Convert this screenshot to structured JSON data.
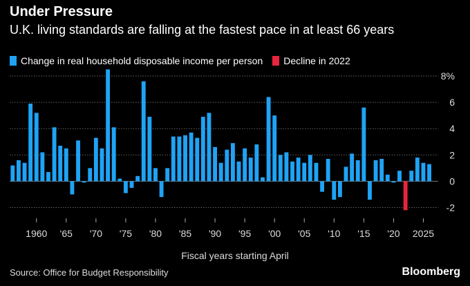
{
  "header": {
    "title": "Under Pressure",
    "subtitle": "U.K. living standards are falling at the fastest pace in at least 66 years"
  },
  "legend": [
    {
      "label": "Change in real household disposable income per person",
      "color": "#1fa3f5"
    },
    {
      "label": "Decline in 2022",
      "color": "#e8253d"
    }
  ],
  "footer": {
    "source": "Source: Office for Budget Responsibility",
    "brand": "Bloomberg"
  },
  "chart_data": {
    "type": "bar",
    "title": "Under Pressure",
    "subtitle": "U.K. living standards are falling at the fastest pace in at least 66 years",
    "xlabel": "Fiscal years starting April",
    "ylabel": "",
    "ylim": [
      -2.5,
      8
    ],
    "yticks": [
      -2,
      0,
      2,
      4,
      6,
      8
    ],
    "ytick_labels": [
      "-2",
      "0",
      "2",
      "4",
      "6",
      "8%"
    ],
    "xticks": [
      1960,
      1965,
      1970,
      1975,
      1980,
      1985,
      1990,
      1995,
      2000,
      2005,
      2010,
      2015,
      2020,
      2025
    ],
    "xtick_labels": [
      "1960",
      "'65",
      "'70",
      "'75",
      "'80",
      "'85",
      "'90",
      "'95",
      "'00",
      "'05",
      "'10",
      "'15",
      "'20",
      "2025"
    ],
    "grid": true,
    "legend_position": "top-left",
    "highlight_year": 2022,
    "series": [
      {
        "name": "Change in real household disposable income per person",
        "color": "#1fa3f5",
        "x": [
          1956,
          1957,
          1958,
          1959,
          1960,
          1961,
          1962,
          1963,
          1964,
          1965,
          1966,
          1967,
          1968,
          1969,
          1970,
          1971,
          1972,
          1973,
          1974,
          1975,
          1976,
          1977,
          1978,
          1979,
          1980,
          1981,
          1982,
          1983,
          1984,
          1985,
          1986,
          1987,
          1988,
          1989,
          1990,
          1991,
          1992,
          1993,
          1994,
          1995,
          1996,
          1997,
          1998,
          1999,
          2000,
          2001,
          2002,
          2003,
          2004,
          2005,
          2006,
          2007,
          2008,
          2009,
          2010,
          2011,
          2012,
          2013,
          2014,
          2015,
          2016,
          2017,
          2018,
          2019,
          2020,
          2021,
          2022,
          2023,
          2024,
          2025,
          2026,
          2027
        ],
        "values": [
          1.2,
          1.6,
          1.4,
          5.9,
          5.2,
          2.2,
          0.7,
          4.1,
          2.7,
          2.5,
          -1.0,
          3.1,
          -0.1,
          1.0,
          3.3,
          2.5,
          8.5,
          4.1,
          0.2,
          -0.9,
          -0.5,
          0.4,
          7.6,
          4.9,
          1.0,
          -1.2,
          1.0,
          3.4,
          3.4,
          3.5,
          3.7,
          3.3,
          4.9,
          5.2,
          2.6,
          1.4,
          2.4,
          2.9,
          1.5,
          2.5,
          1.8,
          2.8,
          0.3,
          6.4,
          5.0,
          2.0,
          2.2,
          1.5,
          1.8,
          1.4,
          2.0,
          1.4,
          -0.8,
          1.7,
          -1.4,
          -1.2,
          1.1,
          2.1,
          1.6,
          5.6,
          -1.4,
          1.6,
          1.7,
          0.5,
          -0.1,
          0.8,
          -2.2,
          0.8,
          1.8,
          1.4,
          1.3,
          0.0
        ]
      }
    ]
  }
}
